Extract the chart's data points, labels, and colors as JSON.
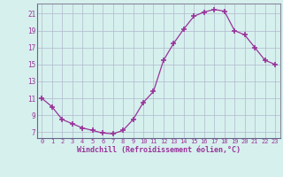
{
  "x": [
    0,
    1,
    2,
    3,
    4,
    5,
    6,
    7,
    8,
    9,
    10,
    11,
    12,
    13,
    14,
    15,
    16,
    17,
    18,
    19,
    20,
    21,
    22,
    23
  ],
  "y": [
    11.0,
    10.0,
    8.5,
    8.0,
    7.5,
    7.2,
    6.9,
    6.8,
    7.2,
    8.5,
    10.5,
    11.8,
    15.5,
    17.5,
    19.2,
    20.7,
    21.2,
    21.5,
    21.3,
    19.0,
    18.5,
    17.0,
    15.5,
    15.0
  ],
  "line_color": "#993399",
  "marker": "+",
  "marker_size": 4.0,
  "bg_color": "#d6f0ee",
  "grid_color": "#b0b8cc",
  "xlabel": "Windchill (Refroidissement éolien,°C)",
  "xlabel_color": "#993399",
  "ylabel_ticks": [
    7,
    9,
    11,
    13,
    15,
    17,
    19,
    21
  ],
  "xlim": [
    -0.5,
    23.5
  ],
  "ylim": [
    6.3,
    22.2
  ]
}
